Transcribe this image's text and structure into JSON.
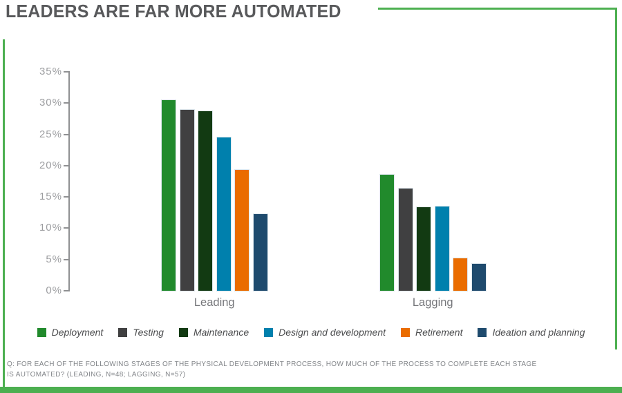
{
  "title": "LEADERS ARE FAR MORE AUTOMATED",
  "colors": {
    "accent_green": "#4caf50",
    "title_text": "#58595b",
    "axis_text": "#9c9da0",
    "category_text": "#75767a",
    "legend_text": "#4b4c4e",
    "footnote_text": "#818488"
  },
  "chart_data": {
    "type": "bar",
    "title": "LEADERS ARE FAR MORE AUTOMATED",
    "categories": [
      "Leading",
      "Lagging"
    ],
    "series": [
      {
        "name": "Deployment",
        "color": "#218a2c",
        "values": [
          30.5,
          18.6
        ]
      },
      {
        "name": "Testing",
        "color": "#404041",
        "values": [
          28.9,
          16.3
        ]
      },
      {
        "name": "Maintenance",
        "color": "#123a12",
        "values": [
          28.7,
          13.4
        ]
      },
      {
        "name": "Design and development",
        "color": "#0080ad",
        "values": [
          24.5,
          13.5
        ]
      },
      {
        "name": "Retirement",
        "color": "#ea6c00",
        "values": [
          19.3,
          5.2
        ]
      },
      {
        "name": "Ideation and planning",
        "color": "#1e4a6d",
        "values": [
          12.3,
          4.3
        ]
      }
    ],
    "ylim": [
      0,
      35
    ],
    "ytick_step": 5,
    "ytick_suffix": "%",
    "grid": false,
    "legend_position": "bottom"
  },
  "footnote": {
    "line1": "Q: FOR EACH OF THE FOLLOWING STAGES OF THE PHYSICAL DEVELOPMENT PROCESS, HOW MUCH OF THE PROCESS TO COMPLETE EACH STAGE",
    "line2": "IS AUTOMATED? (LEADING, N=48; LAGGING, N=57)"
  }
}
